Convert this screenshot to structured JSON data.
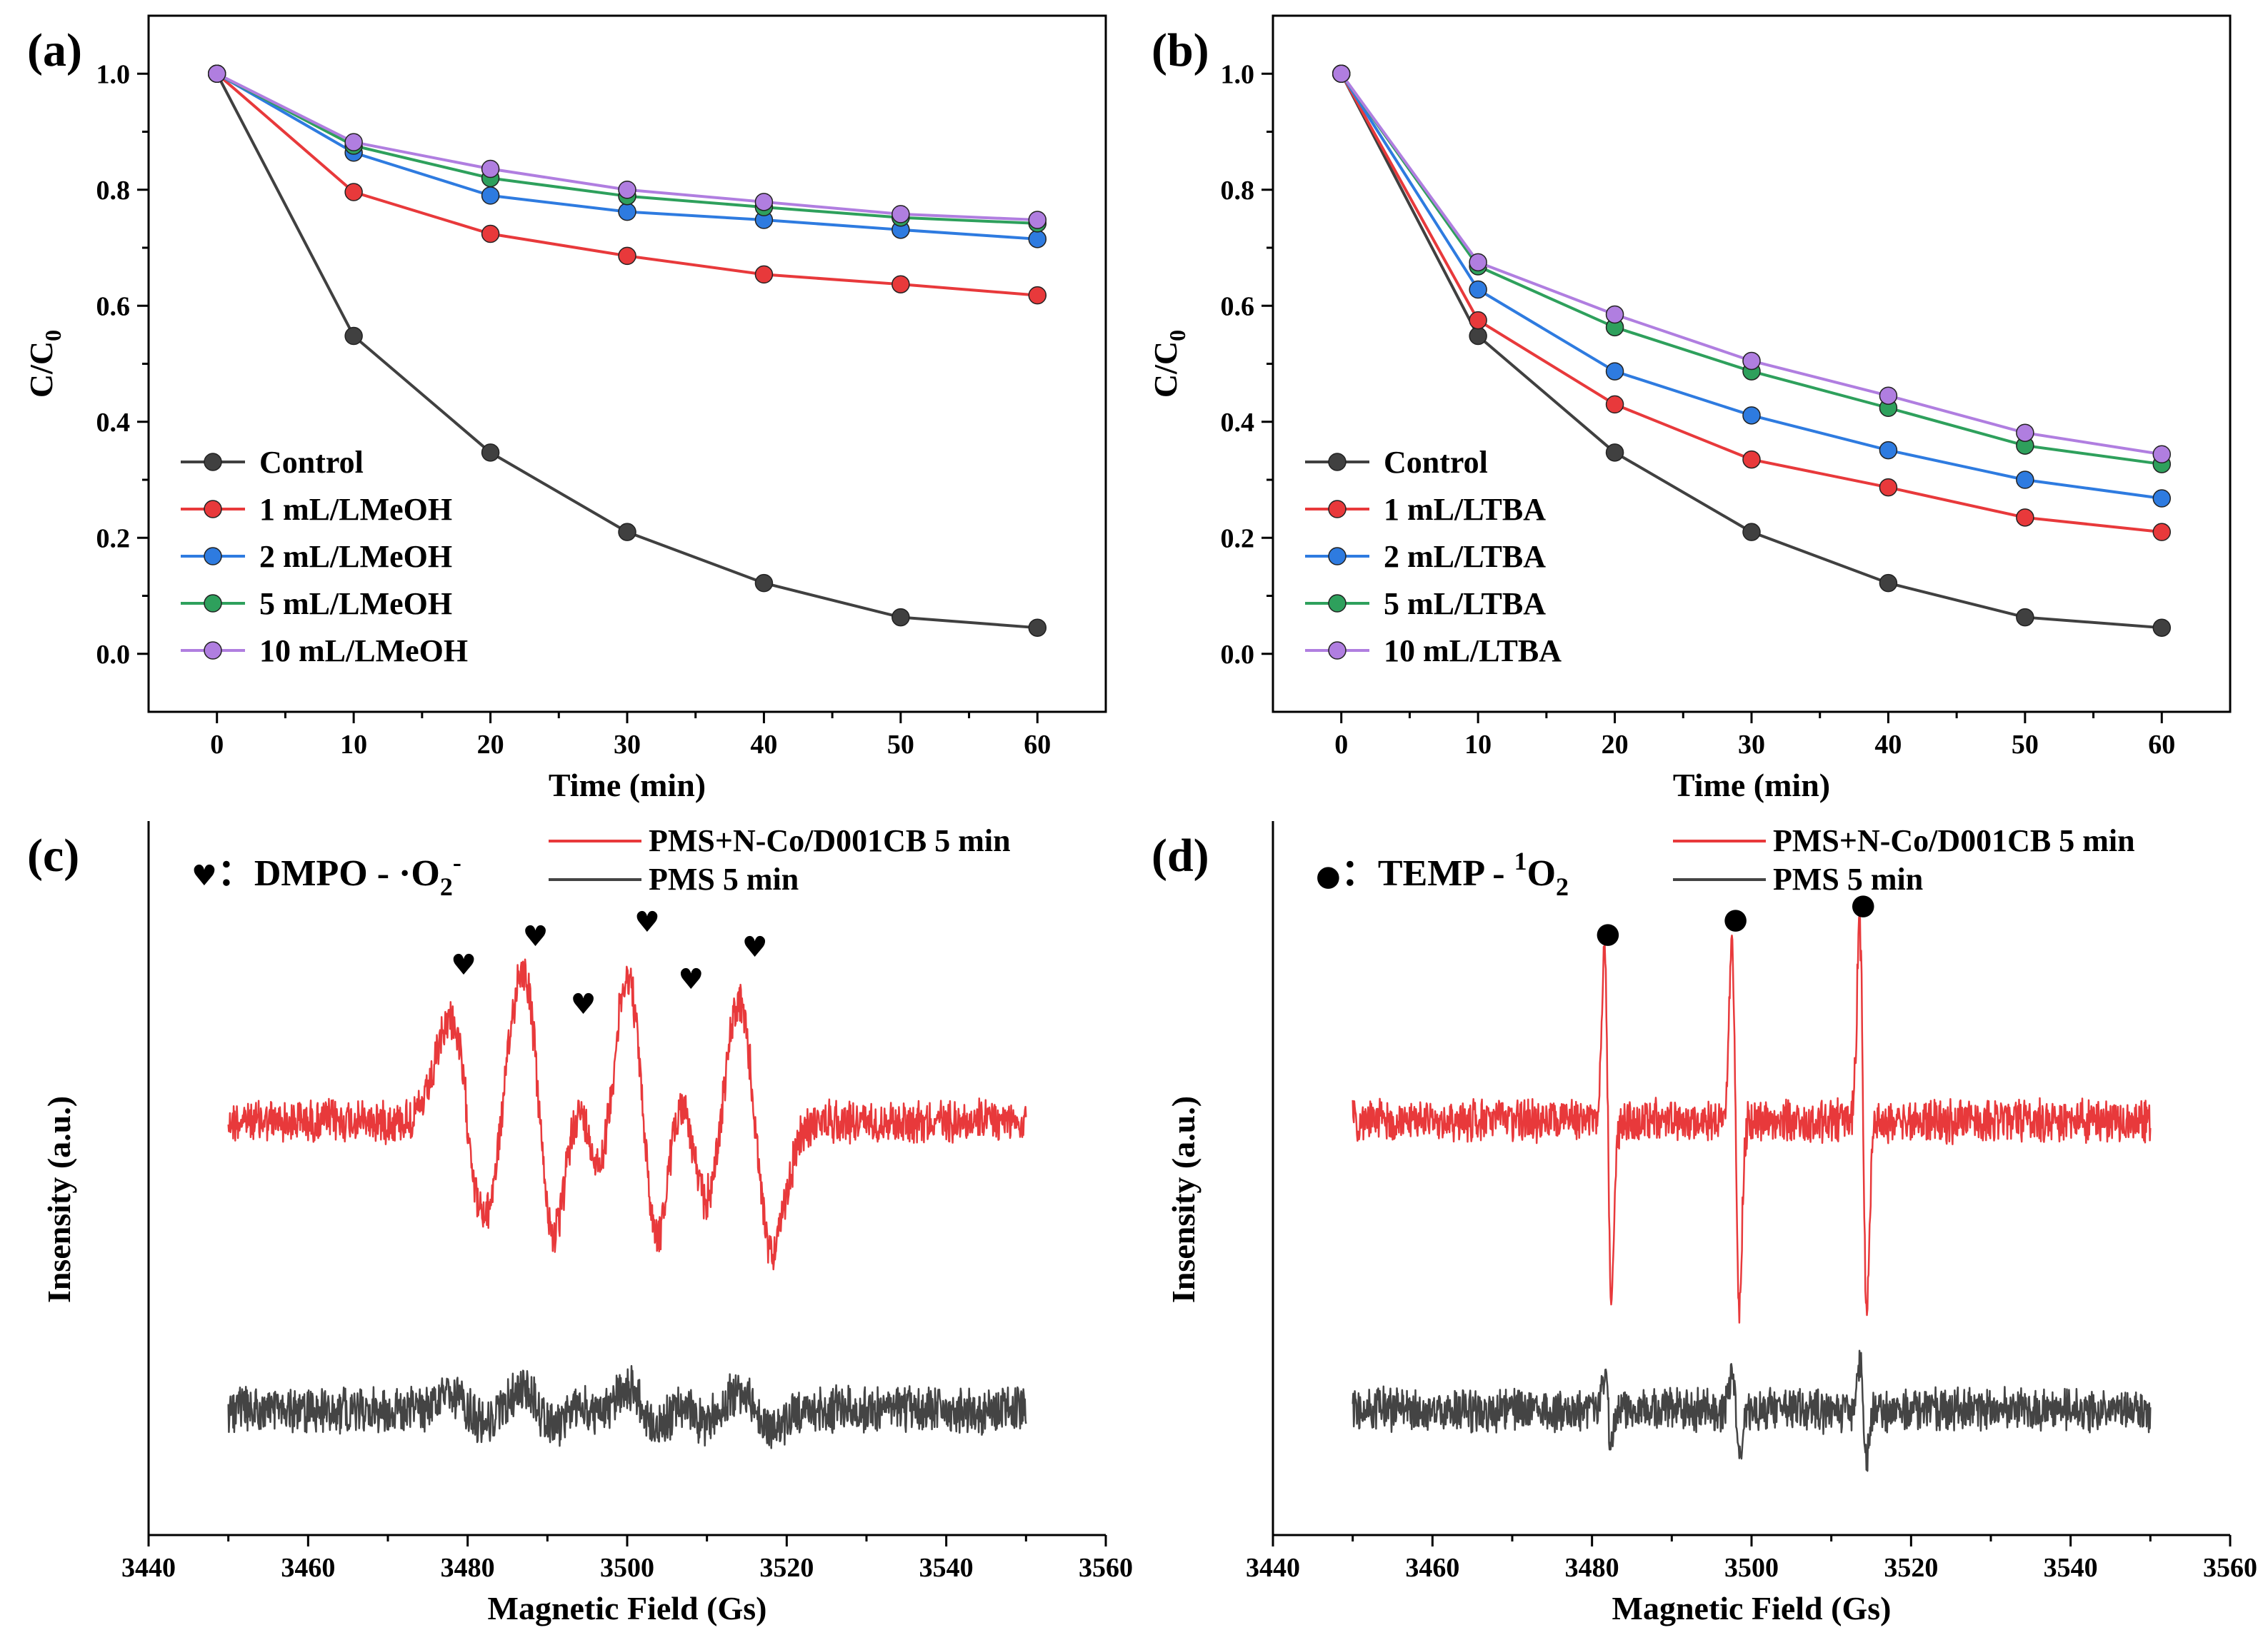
{
  "chart_data": [
    {
      "id": "a",
      "type": "line",
      "panel_label": "(a)",
      "xlabel": "Time (min)",
      "ylabel": "C/C",
      "ylabel_sub": "0",
      "x": [
        0,
        10,
        20,
        30,
        40,
        50,
        60
      ],
      "xlim": [
        -5,
        65
      ],
      "ylim": [
        -0.1,
        1.1
      ],
      "xticks": [
        0,
        10,
        20,
        30,
        40,
        50,
        60
      ],
      "xtick_labels": [
        "0",
        "10",
        "20",
        "30",
        "40",
        "50",
        "60"
      ],
      "yticks": [
        0.0,
        0.2,
        0.4,
        0.6,
        0.8,
        1.0
      ],
      "ytick_labels": [
        "0.0",
        "0.2",
        "0.4",
        "0.6",
        "0.8",
        "1.0"
      ],
      "legend_position": "bottom-left",
      "series": [
        {
          "name": "Control",
          "color": "#404040",
          "values": [
            1.0,
            0.548,
            0.347,
            0.21,
            0.122,
            0.063,
            0.045
          ]
        },
        {
          "name": "1 mL/LMeOH",
          "color": "#e8393b",
          "values": [
            1.0,
            0.796,
            0.724,
            0.686,
            0.654,
            0.637,
            0.618
          ]
        },
        {
          "name": "2 mL/LMeOH",
          "color": "#2e7be0",
          "values": [
            1.0,
            0.864,
            0.79,
            0.762,
            0.748,
            0.731,
            0.715
          ]
        },
        {
          "name": "5 mL/LMeOH",
          "color": "#2ea05c",
          "values": [
            1.0,
            0.876,
            0.82,
            0.789,
            0.77,
            0.752,
            0.742
          ]
        },
        {
          "name": "10 mL/LMeOH",
          "color": "#b07ee0",
          "values": [
            1.0,
            0.882,
            0.836,
            0.8,
            0.779,
            0.758,
            0.748
          ]
        }
      ]
    },
    {
      "id": "b",
      "type": "line",
      "panel_label": "(b)",
      "xlabel": "Time (min)",
      "ylabel": "C/C",
      "ylabel_sub": "0",
      "x": [
        0,
        10,
        20,
        30,
        40,
        50,
        60
      ],
      "xlim": [
        -5,
        65
      ],
      "ylim": [
        -0.1,
        1.1
      ],
      "xticks": [
        0,
        10,
        20,
        30,
        40,
        50,
        60
      ],
      "xtick_labels": [
        "0",
        "10",
        "20",
        "30",
        "40",
        "50",
        "60"
      ],
      "yticks": [
        0.0,
        0.2,
        0.4,
        0.6,
        0.8,
        1.0
      ],
      "ytick_labels": [
        "0.0",
        "0.2",
        "0.4",
        "0.6",
        "0.8",
        "1.0"
      ],
      "legend_position": "bottom-left",
      "series": [
        {
          "name": "Control",
          "color": "#404040",
          "values": [
            1.0,
            0.548,
            0.347,
            0.21,
            0.122,
            0.063,
            0.045
          ]
        },
        {
          "name": "1 mL/LTBA",
          "color": "#e8393b",
          "values": [
            1.0,
            0.575,
            0.43,
            0.335,
            0.287,
            0.235,
            0.21
          ]
        },
        {
          "name": "2 mL/LTBA",
          "color": "#2e7be0",
          "values": [
            1.0,
            0.628,
            0.487,
            0.411,
            0.351,
            0.3,
            0.268
          ]
        },
        {
          "name": "5 mL/LTBA",
          "color": "#2ea05c",
          "values": [
            1.0,
            0.668,
            0.563,
            0.487,
            0.424,
            0.359,
            0.327
          ]
        },
        {
          "name": "10 mL/LTBA",
          "color": "#b07ee0",
          "values": [
            1.0,
            0.675,
            0.585,
            0.505,
            0.445,
            0.381,
            0.344
          ]
        }
      ]
    },
    {
      "id": "c",
      "type": "line",
      "panel_label": "(c)",
      "xlabel": "Magnetic Field (Gs)",
      "ylabel": "Insensity (a.u.)",
      "xlim": [
        3440,
        3560
      ],
      "xticks": [
        3440,
        3460,
        3480,
        3500,
        3520,
        3540,
        3560
      ],
      "xtick_labels": [
        "3440",
        "3460",
        "3480",
        "3500",
        "3520",
        "3540",
        "3560"
      ],
      "field_range": [
        3450,
        3550
      ],
      "annotation_symbol": "♥",
      "annotation_text": "：DMPO - ·O",
      "annotation_sub": "2",
      "annotation_sup": "-",
      "peak_marker_symbol": "♥",
      "peak_markers": [
        3479.5,
        3488.5,
        3494.5,
        3502.5,
        3508,
        3516
      ],
      "series": [
        {
          "name": "PMS+N-Co/D001CB 5 min",
          "color": "#e8393b",
          "baseline": 1.0,
          "peaks": [
            {
              "center": 3480,
              "amp": 0.62
            },
            {
              "center": 3489,
              "amp": 0.95
            },
            {
              "center": 3495,
              "amp": 0.45
            },
            {
              "center": 3502,
              "amp": 1.0
            },
            {
              "center": 3508,
              "amp": 0.55
            },
            {
              "center": 3516,
              "amp": 0.78
            }
          ]
        },
        {
          "name": "PMS 5 min",
          "color": "#444444",
          "baseline": 0.0,
          "peaks": [
            {
              "center": 3480,
              "amp": 0.08
            },
            {
              "center": 3489,
              "amp": 0.12
            },
            {
              "center": 3495,
              "amp": 0.06
            },
            {
              "center": 3502,
              "amp": 0.15
            },
            {
              "center": 3508,
              "amp": 0.08
            },
            {
              "center": 3516,
              "amp": 0.12
            }
          ]
        }
      ]
    },
    {
      "id": "d",
      "type": "line",
      "panel_label": "(d)",
      "xlabel": "Magnetic Field (Gs)",
      "ylabel": "Insensity (a.u.)",
      "xlim": [
        3440,
        3560
      ],
      "xticks": [
        3440,
        3460,
        3480,
        3500,
        3520,
        3540,
        3560
      ],
      "xtick_labels": [
        "3440",
        "3460",
        "3480",
        "3500",
        "3520",
        "3540",
        "3560"
      ],
      "field_range": [
        3450,
        3550
      ],
      "annotation_symbol": "●",
      "annotation_text": "：TEMP - ",
      "annotation_sup_pre": "1",
      "annotation_tail": "O",
      "annotation_sub": "2",
      "peak_marker_symbol": "●",
      "peak_markers": [
        3482,
        3498,
        3514
      ],
      "series": [
        {
          "name": "PMS+N-Co/D001CB 5 min",
          "color": "#e8393b",
          "baseline": 1.0,
          "peaks": [
            {
              "center": 3482,
              "amp": 0.9
            },
            {
              "center": 3498,
              "amp": 0.95
            },
            {
              "center": 3514,
              "amp": 1.0
            }
          ]
        },
        {
          "name": "PMS 5 min",
          "color": "#444444",
          "baseline": 0.0,
          "peaks": [
            {
              "center": 3482,
              "amp": 0.18
            },
            {
              "center": 3498,
              "amp": 0.22
            },
            {
              "center": 3514,
              "amp": 0.25
            }
          ]
        }
      ]
    }
  ]
}
